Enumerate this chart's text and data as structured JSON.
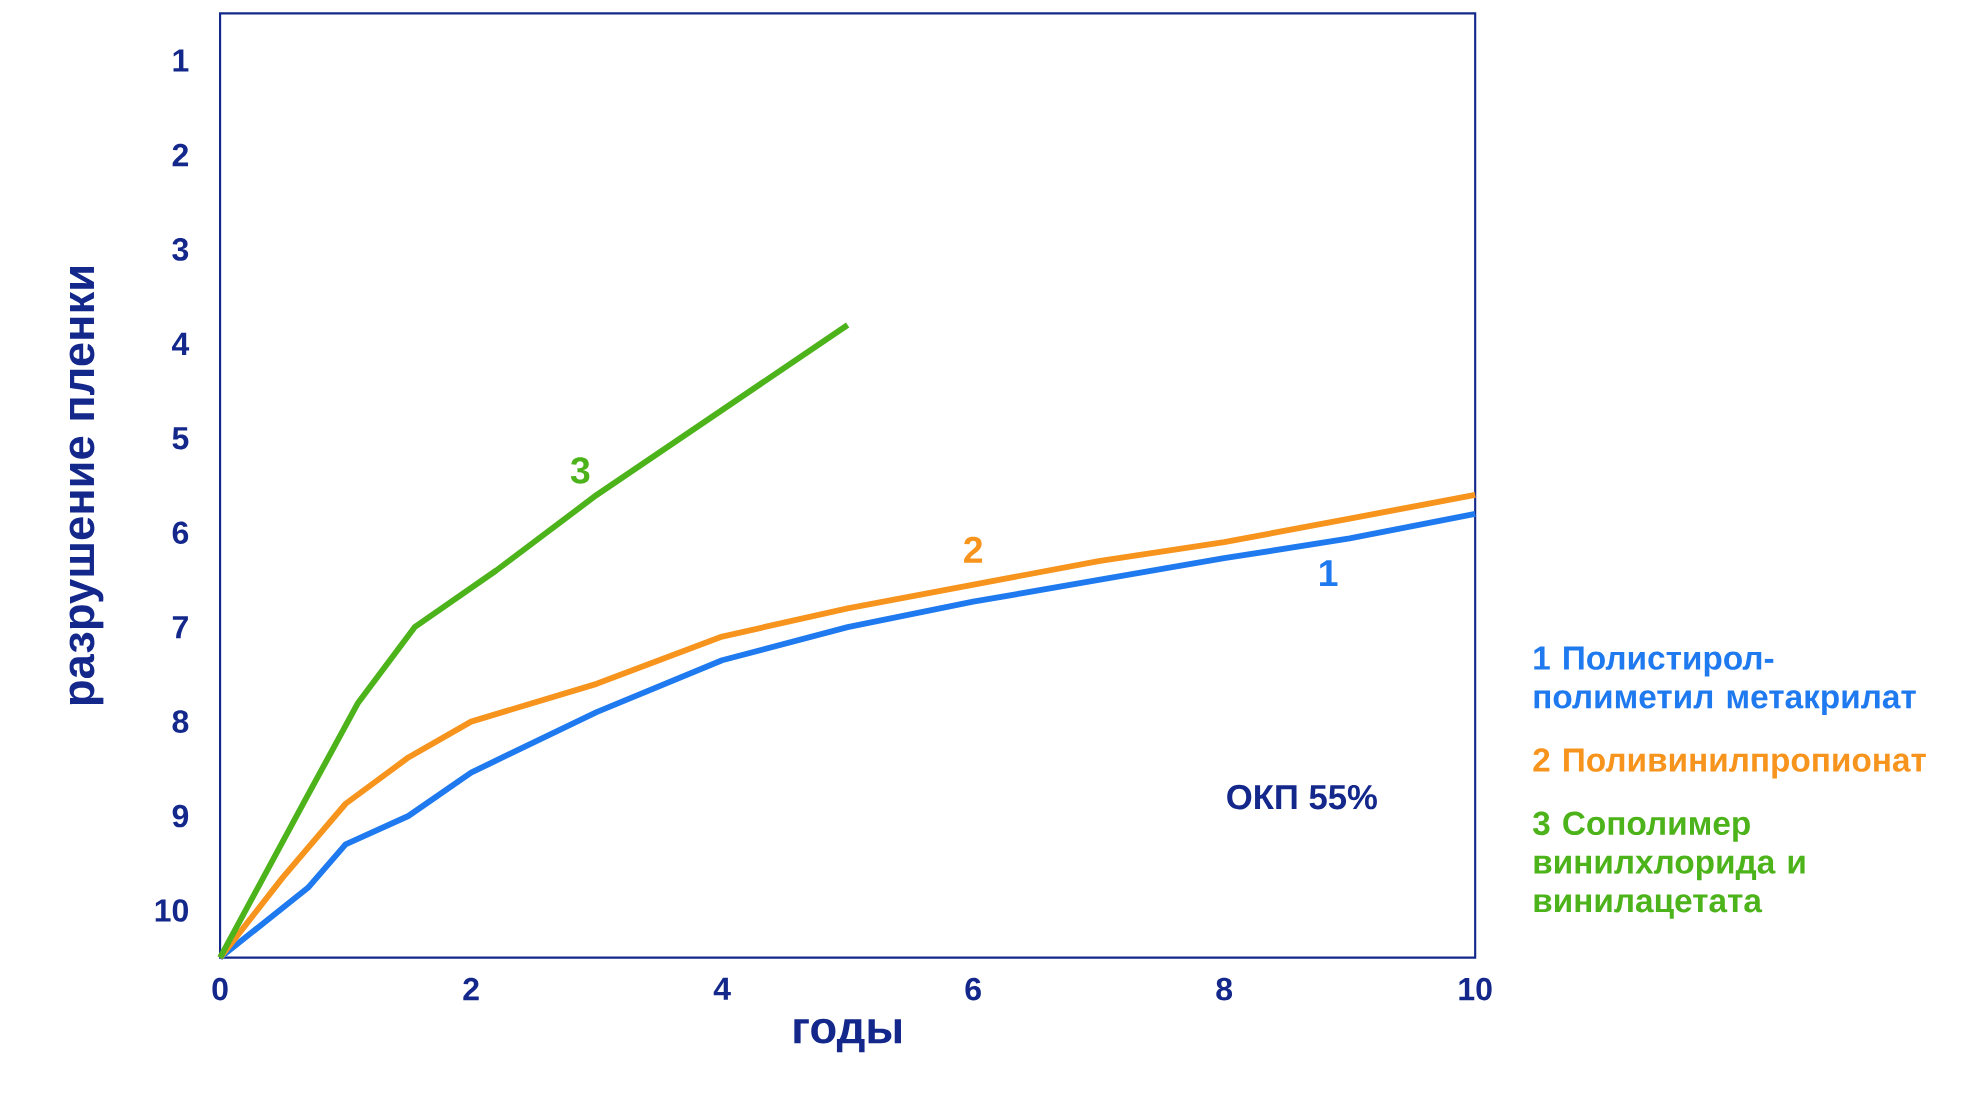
{
  "chart_data": {
    "type": "line",
    "xlabel": "годы",
    "ylabel": "разрушение пленки",
    "xlim": [
      0,
      10
    ],
    "xticks": [
      0,
      2,
      4,
      6,
      8,
      10
    ],
    "ylim": [
      10.5,
      0.5
    ],
    "yticks": [
      1,
      2,
      3,
      4,
      5,
      6,
      7,
      8,
      9,
      10
    ],
    "grid": false,
    "legend": "right",
    "marker": "none",
    "line_style": "solid",
    "series": [
      {
        "name": "1 Полистирол-полиметил метакрилат",
        "color": "#1f7af0",
        "x": [
          0,
          0.7,
          1,
          1.5,
          2,
          3,
          4,
          5,
          6,
          7,
          8,
          9,
          10
        ],
        "values": [
          10.5,
          9.76,
          9.3,
          9.0,
          8.54,
          7.9,
          7.35,
          7.0,
          6.73,
          6.5,
          6.27,
          6.06,
          5.8
        ]
      },
      {
        "name": "2 Поливинилпропионат",
        "color": "#f7941d",
        "x": [
          0,
          0.5,
          1,
          1.5,
          2,
          3,
          4,
          5,
          6,
          7,
          8,
          9,
          10
        ],
        "values": [
          10.5,
          9.65,
          8.87,
          8.38,
          8.0,
          7.6,
          7.1,
          6.8,
          6.55,
          6.3,
          6.1,
          5.85,
          5.6
        ]
      },
      {
        "name": "3 Сополимер винилхлорида и винилацетата",
        "color": "#4cb31a",
        "x": [
          0,
          0.67,
          1.1,
          1.55,
          2.2,
          3,
          4,
          5
        ],
        "values": [
          10.5,
          8.85,
          7.8,
          7.0,
          6.4,
          5.6,
          4.7,
          3.8
        ]
      }
    ],
    "annotations": [
      "1",
      "2",
      "3",
      "ОКП 55%"
    ]
  }
}
